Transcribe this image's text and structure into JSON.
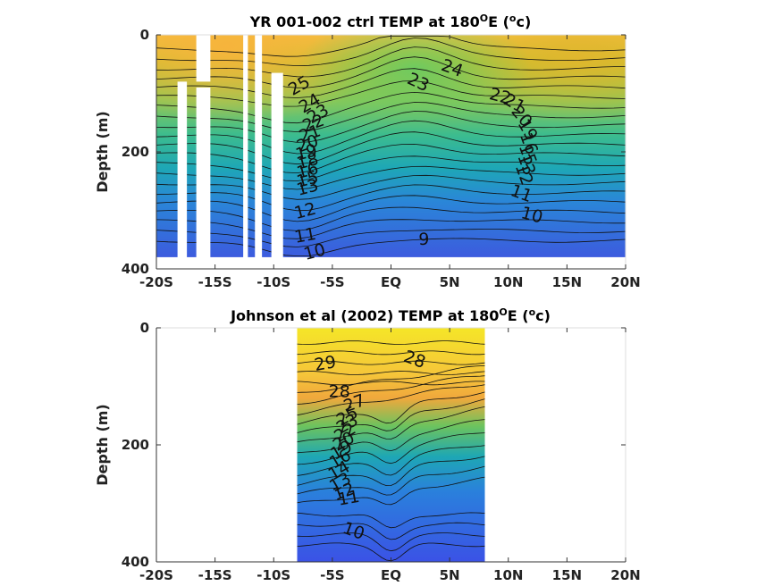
{
  "chart_data": [
    {
      "type": "contour",
      "title": "YR 001-002 ctrl TEMP at 180°E (°c)",
      "title_prefix": "YR 001-002 ctrl TEMP at 180",
      "title_sup1": "O",
      "title_mid": "E (",
      "title_sup2": "o",
      "title_end": "c)",
      "ylabel": "Depth (m)",
      "xlim": [
        -20,
        20
      ],
      "ylim": [
        400,
        0
      ],
      "xticks": [
        -20,
        -15,
        -10,
        -5,
        0,
        5,
        10,
        15,
        20
      ],
      "xticklabels": [
        "-20S",
        "-15S",
        "-10S",
        "-5S",
        "EQ",
        "5N",
        "10N",
        "15N",
        "20N"
      ],
      "yticks": [
        0,
        200,
        400
      ],
      "yticklabels": [
        "0",
        "200",
        "400"
      ],
      "data_x_range": [
        -20,
        20
      ],
      "data_depth_range": [
        0,
        380
      ],
      "missing_columns": [
        {
          "x0": -18.2,
          "x1": -17.4,
          "d0": 80,
          "d1": 400
        },
        {
          "x0": -16.6,
          "x1": -15.4,
          "d0": 0,
          "d1": 80
        },
        {
          "x0": -16.6,
          "x1": -15.4,
          "d0": 90,
          "d1": 400
        },
        {
          "x0": -12.6,
          "x1": -12.2,
          "d0": 0,
          "d1": 400
        },
        {
          "x0": -11.6,
          "x1": -11.0,
          "d0": 0,
          "d1": 400
        },
        {
          "x0": -10.2,
          "x1": -9.2,
          "d0": 65,
          "d1": 400
        }
      ],
      "contour_labels": [
        {
          "text": "25",
          "x": -7.8,
          "d": 88,
          "rot": -30
        },
        {
          "text": "24",
          "x": -6.9,
          "d": 118,
          "rot": -30
        },
        {
          "text": "23",
          "x": -6.2,
          "d": 136,
          "rot": -30
        },
        {
          "text": "22",
          "x": -6.6,
          "d": 152,
          "rot": -20
        },
        {
          "text": "21",
          "x": -6.9,
          "d": 170,
          "rot": -20
        },
        {
          "text": "20",
          "x": -7.1,
          "d": 187,
          "rot": -20
        },
        {
          "text": "19",
          "x": -7.2,
          "d": 202,
          "rot": -15
        },
        {
          "text": "18",
          "x": -7.1,
          "d": 217,
          "rot": -15
        },
        {
          "text": "16",
          "x": -7.1,
          "d": 233,
          "rot": -15
        },
        {
          "text": "15",
          "x": -7.1,
          "d": 248,
          "rot": -15
        },
        {
          "text": "13",
          "x": -7.1,
          "d": 262,
          "rot": -15
        },
        {
          "text": "12",
          "x": -7.3,
          "d": 302,
          "rot": -15
        },
        {
          "text": "11",
          "x": -7.3,
          "d": 344,
          "rot": -10
        },
        {
          "text": "10",
          "x": -6.5,
          "d": 372,
          "rot": -15
        },
        {
          "text": "9",
          "x": 2.8,
          "d": 350,
          "rot": 0
        },
        {
          "text": "23",
          "x": 2.3,
          "d": 82,
          "rot": 25
        },
        {
          "text": "24",
          "x": 5.2,
          "d": 58,
          "rot": 20
        },
        {
          "text": "22",
          "x": 9.3,
          "d": 106,
          "rot": 15
        },
        {
          "text": "21",
          "x": 10.5,
          "d": 118,
          "rot": 30
        },
        {
          "text": "20",
          "x": 11.1,
          "d": 140,
          "rot": 50
        },
        {
          "text": "19",
          "x": 11.6,
          "d": 163,
          "rot": 60
        },
        {
          "text": "16",
          "x": 11.7,
          "d": 186,
          "rot": 70
        },
        {
          "text": "15",
          "x": 11.6,
          "d": 205,
          "rot": 70
        },
        {
          "text": "13",
          "x": 11.5,
          "d": 222,
          "rot": 70
        },
        {
          "text": "12",
          "x": 11.3,
          "d": 239,
          "rot": 70
        },
        {
          "text": "11",
          "x": 11.1,
          "d": 272,
          "rot": 20
        },
        {
          "text": "10",
          "x": 12.0,
          "d": 309,
          "rot": 15
        }
      ]
    },
    {
      "type": "contour",
      "title": "Johnson et al (2002) TEMP at 180°E (°c)",
      "title_prefix": "Johnson et al (2002) TEMP at 180",
      "title_sup1": "O",
      "title_mid": "E (",
      "title_sup2": "o",
      "title_end": "c)",
      "ylabel": "Depth (m)",
      "xlim": [
        -20,
        20
      ],
      "ylim": [
        400,
        0
      ],
      "xticks": [
        -20,
        -15,
        -10,
        -5,
        0,
        5,
        10,
        15,
        20
      ],
      "xticklabels": [
        "-20S",
        "-15S",
        "-10S",
        "-5S",
        "EQ",
        "5N",
        "10N",
        "15N",
        "20N"
      ],
      "yticks": [
        0,
        200,
        400
      ],
      "yticklabels": [
        "0",
        "200",
        "400"
      ],
      "data_x_range": [
        -8,
        8
      ],
      "data_depth_range": [
        0,
        400
      ],
      "contour_labels": [
        {
          "text": "29",
          "x": -5.6,
          "d": 62,
          "rot": -10
        },
        {
          "text": "28",
          "x": 2.0,
          "d": 55,
          "rot": 20
        },
        {
          "text": "28",
          "x": -4.4,
          "d": 110,
          "rot": 0
        },
        {
          "text": "27",
          "x": -3.1,
          "d": 130,
          "rot": -20
        },
        {
          "text": "25",
          "x": -3.7,
          "d": 152,
          "rot": -30
        },
        {
          "text": "23",
          "x": -3.7,
          "d": 165,
          "rot": -30
        },
        {
          "text": "22",
          "x": -3.9,
          "d": 180,
          "rot": -30
        },
        {
          "text": "20",
          "x": -4.0,
          "d": 195,
          "rot": -30
        },
        {
          "text": "19",
          "x": -4.2,
          "d": 210,
          "rot": -30
        },
        {
          "text": "16",
          "x": -4.3,
          "d": 225,
          "rot": -30
        },
        {
          "text": "14",
          "x": -4.4,
          "d": 245,
          "rot": -30
        },
        {
          "text": "13",
          "x": -4.3,
          "d": 265,
          "rot": -30
        },
        {
          "text": "12",
          "x": -4.0,
          "d": 281,
          "rot": -20
        },
        {
          "text": "11",
          "x": -3.6,
          "d": 292,
          "rot": -10
        },
        {
          "text": "10",
          "x": -3.2,
          "d": 348,
          "rot": 20
        }
      ]
    }
  ]
}
